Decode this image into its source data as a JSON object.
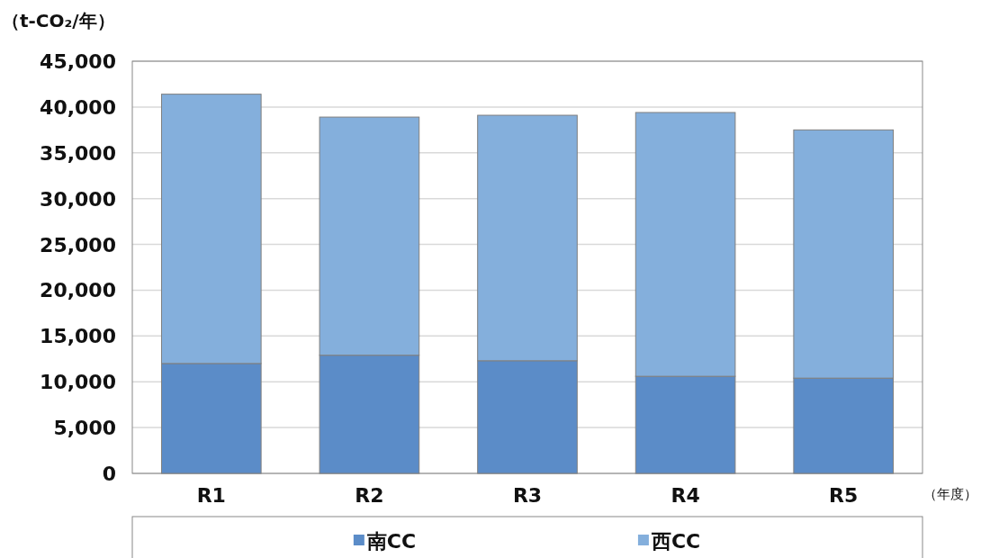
{
  "chart_data": {
    "type": "bar",
    "stacked": true,
    "ylabel": "（t-CO₂/年）",
    "xlabel": "（年度）",
    "categories": [
      "R1",
      "R2",
      "R3",
      "R4",
      "R5"
    ],
    "series": [
      {
        "name": "南CC",
        "color": "#5b8cc8",
        "values": [
          12000,
          12900,
          12300,
          10600,
          10400
        ]
      },
      {
        "name": "西CC",
        "color": "#84afdc",
        "values": [
          29400,
          26000,
          26800,
          28800,
          27100
        ]
      }
    ],
    "ylim": [
      0,
      45000
    ],
    "yticks": [
      {
        "value": 0,
        "label": "0"
      },
      {
        "value": 5000,
        "label": "5,000"
      },
      {
        "value": 10000,
        "label": "10,000"
      },
      {
        "value": 15000,
        "label": "15,000"
      },
      {
        "value": 20000,
        "label": "20,000"
      },
      {
        "value": 25000,
        "label": "25,000"
      },
      {
        "value": 30000,
        "label": "30,000"
      },
      {
        "value": 35000,
        "label": "35,000"
      },
      {
        "value": 40000,
        "label": "40,000"
      },
      {
        "value": 45000,
        "label": "45,000"
      }
    ],
    "grid": "y",
    "legend": "bottom"
  }
}
